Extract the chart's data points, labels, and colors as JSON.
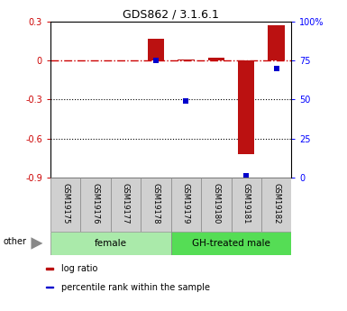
{
  "title": "GDS862 / 3.1.6.1",
  "samples": [
    "GSM19175",
    "GSM19176",
    "GSM19177",
    "GSM19178",
    "GSM19179",
    "GSM19180",
    "GSM19181",
    "GSM19182"
  ],
  "log_ratio": [
    0.0,
    0.0,
    0.0,
    0.17,
    0.01,
    0.02,
    -0.72,
    0.27
  ],
  "percentile": [
    null,
    null,
    null,
    75.0,
    49.0,
    null,
    1.0,
    70.0
  ],
  "ylim_left": [
    -0.9,
    0.3
  ],
  "ylim_right": [
    0,
    100
  ],
  "yticks_left": [
    -0.9,
    -0.6,
    -0.3,
    0.0,
    0.3
  ],
  "yticks_right": [
    0,
    25,
    50,
    75,
    100
  ],
  "ytick_labels_left": [
    "-0.9",
    "-0.6",
    "-0.3",
    "0",
    "0.3"
  ],
  "ytick_labels_right": [
    "0",
    "25",
    "50",
    "75",
    "100%"
  ],
  "hlines_dotted": [
    -0.3,
    -0.6
  ],
  "hline_dashdot": 0.0,
  "groups": [
    {
      "label": "female",
      "start": 0,
      "end": 4,
      "color": "#AAEAAA"
    },
    {
      "label": "GH-treated male",
      "start": 4,
      "end": 8,
      "color": "#55DD55"
    }
  ],
  "bar_color": "#BB1111",
  "marker_color": "#0000CC",
  "bar_width": 0.55,
  "marker_size": 5,
  "legend_items": [
    {
      "label": "log ratio",
      "color": "#BB1111"
    },
    {
      "label": "percentile rank within the sample",
      "color": "#0000CC"
    }
  ],
  "other_label": "other",
  "sample_box_color": "#D0D0D0",
  "sample_box_edge": "#888888"
}
